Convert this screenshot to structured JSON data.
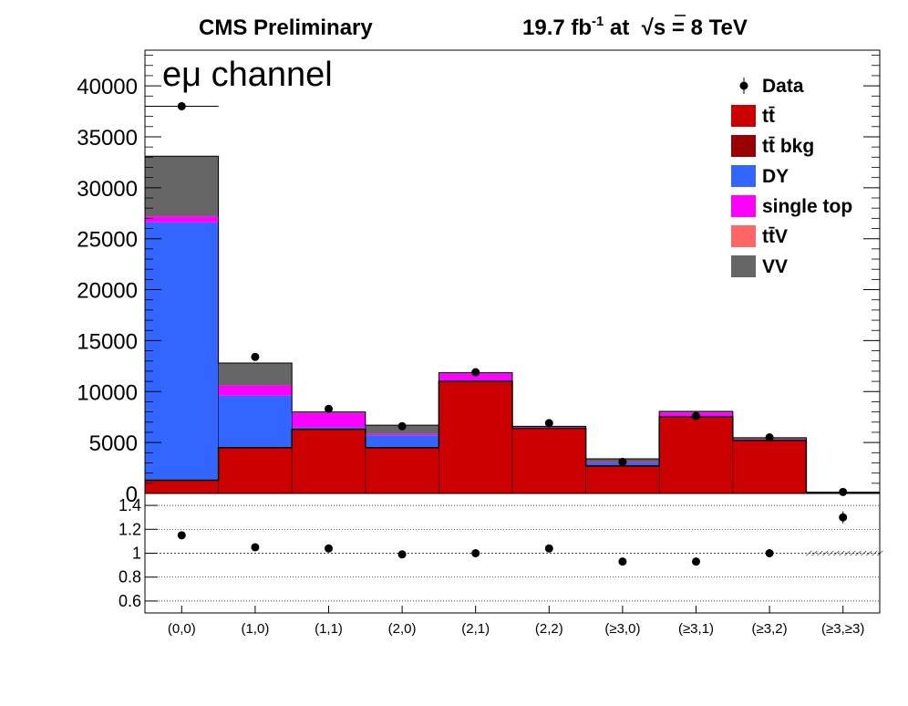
{
  "header": {
    "left": "CMS Preliminary",
    "lumi": "19.7 fb",
    "lumi_exp": "-1",
    "energy_pre": " at  ",
    "sqrt": "√",
    "energy": "s = 8 TeV"
  },
  "annotation": "eμ channel",
  "chart_data": [
    {
      "type": "bar",
      "stacked": true,
      "categories": [
        "(0,0)",
        "(1,0)",
        "(1,1)",
        "(2,0)",
        "(2,1)",
        "(2,2)",
        "(≥3,0)",
        "(≥3,1)",
        "(≥3,2)",
        "(≥3,≥3)"
      ],
      "xlabel": "",
      "ylabel": "",
      "ylim": [
        0,
        43500
      ],
      "yticks": [
        0,
        5000,
        10000,
        15000,
        20000,
        25000,
        30000,
        35000,
        40000
      ],
      "grid": false,
      "legend_position": "top-right",
      "series": [
        {
          "name": "tt̄",
          "color": "#cc0000",
          "values": [
            1300,
            4500,
            6300,
            4500,
            11000,
            6400,
            2700,
            7500,
            5200,
            100
          ]
        },
        {
          "name": "tt̄ bkg",
          "color": "#990000",
          "values": [
            0,
            0,
            0,
            0,
            0,
            0,
            0,
            0,
            0,
            0
          ]
        },
        {
          "name": "DY",
          "color": "#3366ff",
          "values": [
            25300,
            5100,
            200,
            1200,
            100,
            80,
            300,
            50,
            20,
            5
          ]
        },
        {
          "name": "single top",
          "color": "#ff00ff",
          "values": [
            600,
            1000,
            1400,
            150,
            700,
            50,
            50,
            400,
            100,
            5
          ]
        },
        {
          "name": "tt̄V",
          "color": "#ff6666",
          "values": [
            0,
            0,
            0,
            0,
            0,
            0,
            0,
            0,
            0,
            0
          ]
        },
        {
          "name": "VV",
          "color": "#666666",
          "values": [
            5900,
            2200,
            100,
            850,
            50,
            60,
            350,
            100,
            150,
            5
          ]
        }
      ],
      "data": {
        "name": "Data",
        "values": [
          38000,
          13400,
          8300,
          6600,
          11900,
          6900,
          3100,
          7600,
          5500,
          150
        ]
      }
    },
    {
      "type": "scatter",
      "panel": "ratio",
      "categories": [
        "(0,0)",
        "(1,0)",
        "(1,1)",
        "(2,0)",
        "(2,1)",
        "(2,2)",
        "(≥3,0)",
        "(≥3,1)",
        "(≥3,2)",
        "(≥3,≥3)"
      ],
      "ylim": [
        0.5,
        1.5
      ],
      "yticks": [
        0.6,
        0.8,
        1,
        1.2,
        1.4
      ],
      "grid": true,
      "values": [
        1.15,
        1.05,
        1.04,
        0.99,
        1.0,
        1.04,
        0.93,
        0.93,
        1.0,
        1.3
      ],
      "errors": [
        0.01,
        0.01,
        0.01,
        0.01,
        0.01,
        0.01,
        0.02,
        0.01,
        0.01,
        0.05
      ]
    }
  ]
}
